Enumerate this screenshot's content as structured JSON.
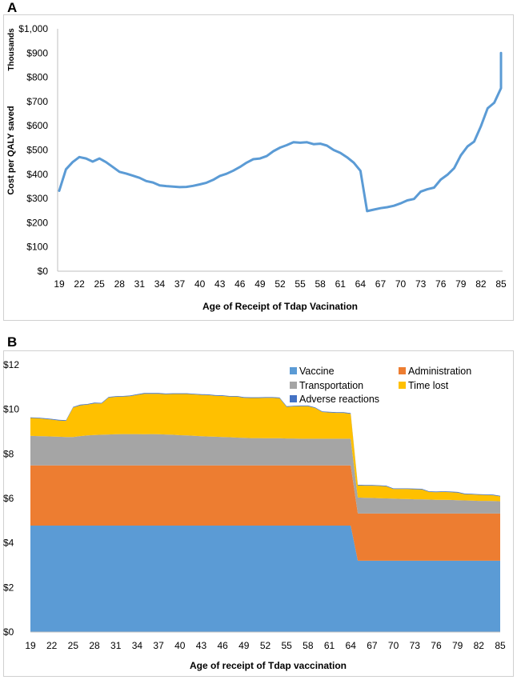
{
  "charts": {
    "a": {
      "panel_label": "A",
      "ylabel": "Cost per QALY saved",
      "yunit": "Thousands",
      "xlabel": "Age of Receipt of Tdap Vacination",
      "line_color": "#5b9bd5"
    },
    "b": {
      "panel_label": "B",
      "xlabel": "Age of receipt of Tdap vaccination",
      "legend": {
        "vaccine": "Vaccine",
        "administration": "Administration",
        "transportation": "Transportation",
        "time_lost": "Time lost",
        "adverse": "Adverse reactions"
      }
    }
  },
  "chart_data": [
    {
      "type": "line",
      "title": "",
      "xlabel": "Age of Receipt of Tdap Vacination",
      "ylabel": "Cost per QALY saved",
      "yunit": "Thousands",
      "xlim": [
        19,
        85
      ],
      "ylim": [
        0,
        1000
      ],
      "x_ticks": [
        19,
        22,
        25,
        28,
        31,
        34,
        37,
        40,
        43,
        46,
        49,
        52,
        55,
        58,
        61,
        64,
        67,
        70,
        73,
        76,
        79,
        82,
        85
      ],
      "y_ticks": [
        0,
        100,
        200,
        300,
        400,
        500,
        600,
        700,
        800,
        900,
        1000
      ],
      "y_tick_labels": [
        "$0",
        "$100",
        "$200",
        "$300",
        "$400",
        "$500",
        "$600",
        "$700",
        "$800",
        "$900",
        "$1,000"
      ],
      "grid": false,
      "series": [
        {
          "x": [
            19,
            20,
            21,
            22,
            23,
            24,
            25,
            26,
            27,
            28,
            29,
            30,
            31,
            32,
            33,
            34,
            35,
            36,
            37,
            38,
            39,
            40,
            41,
            42,
            43,
            44,
            45,
            46,
            47,
            48,
            49,
            50,
            51,
            52,
            53,
            54,
            55,
            56,
            57,
            58,
            59,
            60,
            61,
            62,
            63,
            64,
            65,
            66,
            67,
            68,
            69,
            70,
            71,
            72,
            73,
            74,
            75,
            76,
            77,
            78,
            79,
            80,
            81,
            82,
            83,
            84,
            85
          ],
          "values": [
            332,
            420,
            450,
            471,
            465,
            452,
            465,
            450,
            430,
            410,
            403,
            394,
            385,
            372,
            366,
            354,
            351,
            349,
            347,
            348,
            352,
            358,
            365,
            377,
            393,
            402,
            415,
            430,
            448,
            462,
            465,
            475,
            495,
            510,
            520,
            532,
            530,
            532,
            524,
            526,
            518,
            500,
            488,
            470,
            448,
            414,
            248,
            254,
            260,
            264,
            270,
            280,
            292,
            298,
            328,
            338,
            345,
            378,
            398,
            425,
            478,
            515,
            535,
            598,
            672,
            695,
            755
          ]
        }
      ],
      "extra_points": [
        {
          "x": 85,
          "y": 900
        }
      ],
      "colors": {
        "line": "#5b9bd5"
      }
    },
    {
      "type": "area",
      "stacked": true,
      "title": "",
      "xlabel": "Age of receipt of Tdap vaccination",
      "ylabel": "",
      "xlim": [
        19,
        85
      ],
      "ylim": [
        0,
        12
      ],
      "x_ticks": [
        19,
        22,
        25,
        28,
        31,
        34,
        37,
        40,
        43,
        46,
        49,
        52,
        55,
        58,
        61,
        64,
        67,
        70,
        73,
        76,
        79,
        82,
        85
      ],
      "y_ticks": [
        0,
        2,
        4,
        6,
        8,
        10,
        12
      ],
      "y_tick_labels": [
        "$0",
        "$2",
        "$4",
        "$6",
        "$8",
        "$10",
        "$12"
      ],
      "grid": false,
      "legend": "top-right",
      "x": [
        19,
        20,
        21,
        22,
        23,
        24,
        25,
        26,
        27,
        28,
        29,
        30,
        31,
        32,
        33,
        34,
        35,
        36,
        37,
        38,
        39,
        40,
        41,
        42,
        43,
        44,
        45,
        46,
        47,
        48,
        49,
        50,
        51,
        52,
        53,
        54,
        55,
        56,
        57,
        58,
        59,
        60,
        61,
        62,
        63,
        64,
        65,
        66,
        67,
        68,
        69,
        70,
        71,
        72,
        73,
        74,
        75,
        76,
        77,
        78,
        79,
        80,
        81,
        82,
        83,
        84,
        85
      ],
      "series": [
        {
          "name": "Vaccine",
          "color": "#5b9bd5",
          "values": [
            4.78,
            4.78,
            4.78,
            4.78,
            4.78,
            4.78,
            4.78,
            4.78,
            4.78,
            4.78,
            4.78,
            4.78,
            4.78,
            4.78,
            4.78,
            4.78,
            4.78,
            4.78,
            4.78,
            4.78,
            4.78,
            4.78,
            4.78,
            4.78,
            4.78,
            4.78,
            4.78,
            4.78,
            4.78,
            4.78,
            4.78,
            4.78,
            4.78,
            4.78,
            4.78,
            4.78,
            4.78,
            4.78,
            4.78,
            4.78,
            4.78,
            4.78,
            4.78,
            4.78,
            4.78,
            4.78,
            3.2,
            3.2,
            3.2,
            3.2,
            3.2,
            3.2,
            3.2,
            3.2,
            3.2,
            3.2,
            3.2,
            3.2,
            3.2,
            3.2,
            3.2,
            3.2,
            3.2,
            3.2,
            3.2,
            3.2,
            3.2
          ]
        },
        {
          "name": "Administration",
          "color": "#ed7d31",
          "values": [
            2.7,
            2.7,
            2.7,
            2.7,
            2.7,
            2.7,
            2.7,
            2.7,
            2.7,
            2.7,
            2.7,
            2.7,
            2.7,
            2.7,
            2.7,
            2.7,
            2.7,
            2.7,
            2.7,
            2.7,
            2.7,
            2.7,
            2.7,
            2.7,
            2.7,
            2.7,
            2.7,
            2.7,
            2.7,
            2.7,
            2.7,
            2.7,
            2.7,
            2.7,
            2.7,
            2.7,
            2.7,
            2.7,
            2.7,
            2.7,
            2.7,
            2.7,
            2.7,
            2.7,
            2.7,
            2.7,
            2.12,
            2.12,
            2.12,
            2.12,
            2.12,
            2.12,
            2.12,
            2.12,
            2.12,
            2.12,
            2.12,
            2.12,
            2.12,
            2.12,
            2.12,
            2.12,
            2.12,
            2.12,
            2.12,
            2.12,
            2.12
          ]
        },
        {
          "name": "Transportation",
          "color": "#a5a5a5",
          "values": [
            1.33,
            1.32,
            1.31,
            1.3,
            1.29,
            1.28,
            1.28,
            1.32,
            1.35,
            1.37,
            1.38,
            1.39,
            1.4,
            1.41,
            1.41,
            1.41,
            1.4,
            1.41,
            1.4,
            1.39,
            1.38,
            1.36,
            1.35,
            1.33,
            1.31,
            1.3,
            1.29,
            1.28,
            1.27,
            1.25,
            1.24,
            1.23,
            1.23,
            1.22,
            1.22,
            1.22,
            1.21,
            1.21,
            1.2,
            1.2,
            1.2,
            1.2,
            1.2,
            1.2,
            1.2,
            1.2,
            0.72,
            0.71,
            0.7,
            0.69,
            0.68,
            0.67,
            0.66,
            0.65,
            0.64,
            0.64,
            0.63,
            0.62,
            0.62,
            0.61,
            0.6,
            0.59,
            0.58,
            0.57,
            0.57,
            0.56,
            0.55
          ]
        },
        {
          "name": "Time lost",
          "color": "#ffc000",
          "values": [
            0.8,
            0.8,
            0.78,
            0.76,
            0.73,
            0.72,
            1.32,
            1.38,
            1.38,
            1.42,
            1.4,
            1.66,
            1.68,
            1.68,
            1.7,
            1.76,
            1.82,
            1.81,
            1.82,
            1.81,
            1.83,
            1.85,
            1.86,
            1.86,
            1.86,
            1.86,
            1.84,
            1.84,
            1.82,
            1.84,
            1.8,
            1.8,
            1.8,
            1.82,
            1.82,
            1.8,
            1.42,
            1.44,
            1.46,
            1.46,
            1.38,
            1.2,
            1.18,
            1.16,
            1.16,
            1.12,
            0.54,
            0.54,
            0.55,
            0.55,
            0.54,
            0.43,
            0.44,
            0.45,
            0.45,
            0.44,
            0.34,
            0.34,
            0.35,
            0.35,
            0.34,
            0.28,
            0.28,
            0.27,
            0.26,
            0.26,
            0.22
          ]
        },
        {
          "name": "Adverse reactions",
          "color": "#4472c4",
          "values": [
            0.03,
            0.03,
            0.03,
            0.03,
            0.03,
            0.03,
            0.03,
            0.03,
            0.03,
            0.03,
            0.03,
            0.03,
            0.03,
            0.03,
            0.03,
            0.03,
            0.03,
            0.03,
            0.03,
            0.03,
            0.03,
            0.03,
            0.03,
            0.03,
            0.03,
            0.03,
            0.03,
            0.03,
            0.03,
            0.03,
            0.03,
            0.03,
            0.03,
            0.03,
            0.03,
            0.03,
            0.03,
            0.03,
            0.03,
            0.03,
            0.03,
            0.03,
            0.03,
            0.03,
            0.03,
            0.03,
            0.03,
            0.03,
            0.03,
            0.03,
            0.03,
            0.03,
            0.03,
            0.03,
            0.03,
            0.03,
            0.03,
            0.03,
            0.03,
            0.03,
            0.03,
            0.03,
            0.03,
            0.03,
            0.03,
            0.03,
            0.03
          ]
        }
      ]
    }
  ]
}
